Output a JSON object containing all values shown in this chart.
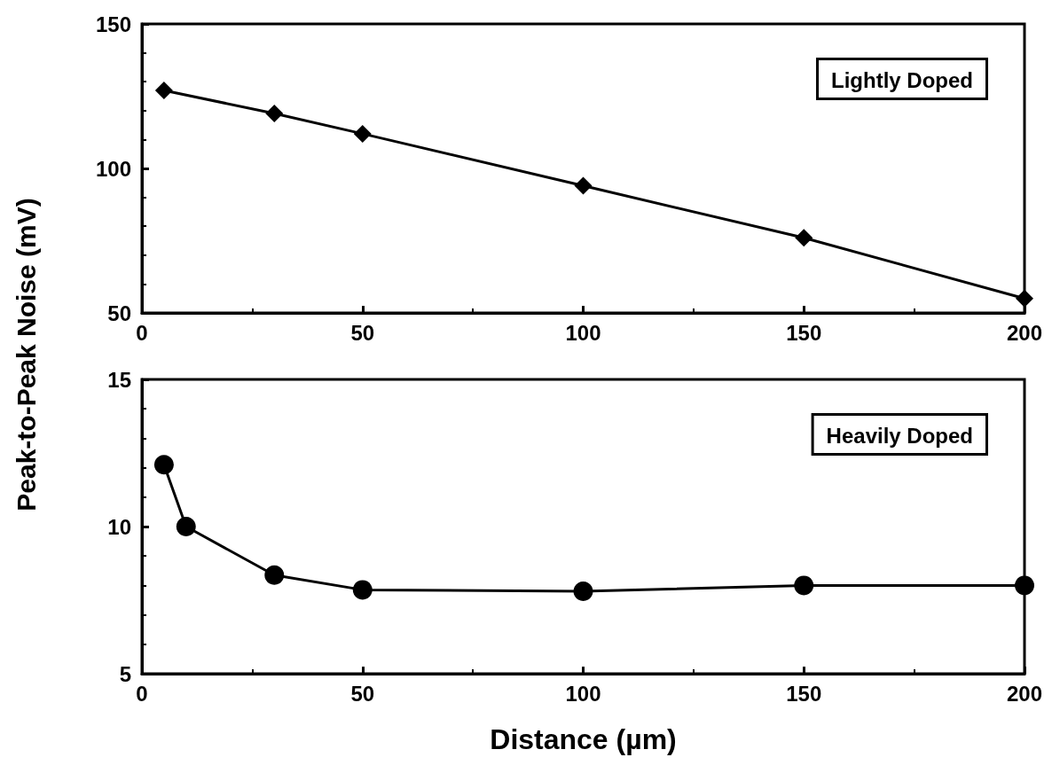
{
  "chart_data": [
    {
      "type": "line",
      "ylabel": "Peak-to-Peak Noise (mV)",
      "annotations": [
        "Lightly Doped"
      ],
      "marker": "diamond",
      "line_style": "solid",
      "x": [
        5,
        30,
        50,
        100,
        150,
        200
      ],
      "series": [
        {
          "color": "#000000",
          "values": [
            127,
            119,
            112,
            94,
            76,
            55
          ]
        }
      ],
      "xlim": [
        0,
        200
      ],
      "xticks": [
        0,
        50,
        100,
        150,
        200
      ],
      "ylim": [
        50,
        150
      ],
      "yticks": [
        50,
        100,
        150
      ]
    },
    {
      "type": "line",
      "xlabel": "Distance (µm)",
      "annotations": [
        "Heavily Doped"
      ],
      "marker": "circle",
      "line_style": "solid",
      "x": [
        5,
        10,
        30,
        50,
        100,
        150,
        200
      ],
      "series": [
        {
          "color": "#000000",
          "values": [
            12.1,
            10.0,
            8.35,
            7.85,
            7.8,
            8.0,
            8.0
          ]
        }
      ],
      "xlim": [
        0,
        200
      ],
      "xticks": [
        0,
        50,
        100,
        150,
        200
      ],
      "ylim": [
        5,
        15
      ],
      "yticks": [
        5,
        10,
        15
      ]
    }
  ]
}
